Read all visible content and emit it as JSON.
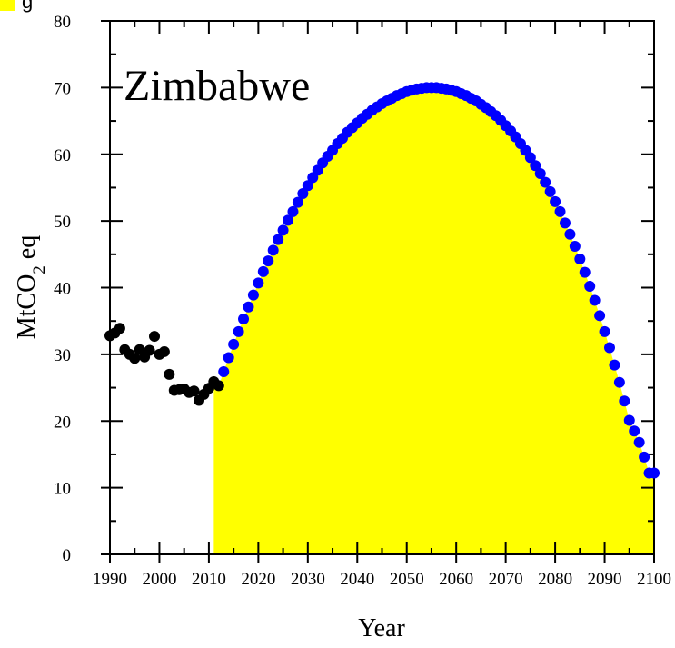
{
  "chart_data": {
    "type": "scatter",
    "title": "Zimbabwe",
    "xlabel": "Year",
    "ylabel": {
      "main": "MtCO",
      "sub": "2",
      "suffix": " eq"
    },
    "xlim": [
      1990,
      2100
    ],
    "ylim": [
      0,
      80
    ],
    "x_ticks": [
      1990,
      2000,
      2010,
      2020,
      2030,
      2040,
      2050,
      2060,
      2070,
      2080,
      2090,
      2100
    ],
    "y_ticks": [
      0,
      10,
      20,
      30,
      40,
      50,
      60,
      70,
      80
    ],
    "grid": false,
    "legend": {
      "placement": "top-left",
      "entries": [
        {
          "label": "g",
          "color": "#ffff00"
        }
      ]
    },
    "colors": {
      "historical": "#000000",
      "projection": "#0000ff",
      "area_fill": "#ffff00"
    },
    "series": [
      {
        "name": "historical",
        "x": [
          1990,
          1991,
          1992,
          1993,
          1994,
          1995,
          1996,
          1997,
          1998,
          1999,
          2000,
          2001,
          2002,
          2003,
          2004,
          2005,
          2006,
          2007,
          2008,
          2009,
          2010,
          2011,
          2012
        ],
        "y": [
          32.8,
          33.2,
          33.9,
          30.7,
          30.0,
          29.4,
          30.7,
          29.6,
          30.6,
          32.7,
          30.0,
          30.4,
          27.0,
          24.6,
          24.7,
          24.8,
          24.3,
          24.5,
          23.1,
          24.0,
          24.9,
          25.9,
          25.3
        ]
      },
      {
        "name": "projection",
        "x": [
          2013,
          2014,
          2015,
          2016,
          2017,
          2018,
          2019,
          2020,
          2021,
          2022,
          2023,
          2024,
          2025,
          2026,
          2027,
          2028,
          2029,
          2030,
          2031,
          2032,
          2033,
          2034,
          2035,
          2036,
          2037,
          2038,
          2039,
          2040,
          2041,
          2042,
          2043,
          2044,
          2045,
          2046,
          2047,
          2048,
          2049,
          2050,
          2051,
          2052,
          2053,
          2054,
          2055,
          2056,
          2057,
          2058,
          2059,
          2060,
          2061,
          2062,
          2063,
          2064,
          2065,
          2066,
          2067,
          2068,
          2069,
          2070,
          2071,
          2072,
          2073,
          2074,
          2075,
          2076,
          2077,
          2078,
          2079,
          2080,
          2081,
          2082,
          2083,
          2084,
          2085,
          2086,
          2087,
          2088,
          2089,
          2090,
          2091,
          2092,
          2093,
          2094,
          2095,
          2096,
          2097,
          2098,
          2099,
          2100
        ],
        "y": [
          27.4,
          29.5,
          31.5,
          33.4,
          35.3,
          37.1,
          38.9,
          40.7,
          42.4,
          44.0,
          45.6,
          47.2,
          48.6,
          50.1,
          51.4,
          52.8,
          54.1,
          55.3,
          56.5,
          57.6,
          58.7,
          59.7,
          60.6,
          61.6,
          62.4,
          63.3,
          64.0,
          64.7,
          65.4,
          66.0,
          66.6,
          67.1,
          67.6,
          68.0,
          68.4,
          68.8,
          69.1,
          69.4,
          69.6,
          69.8,
          69.9,
          70.0,
          70.0,
          70.0,
          69.9,
          69.8,
          69.6,
          69.4,
          69.1,
          68.8,
          68.4,
          68.0,
          67.5,
          67.0,
          66.4,
          65.8,
          65.1,
          64.3,
          63.5,
          62.6,
          61.6,
          60.6,
          59.5,
          58.3,
          57.1,
          55.8,
          54.4,
          52.9,
          51.4,
          49.7,
          48.0,
          46.2,
          44.3,
          42.3,
          40.2,
          38.1,
          35.8,
          33.4,
          31.0,
          28.4,
          25.8,
          23.0,
          20.1,
          18.5,
          16.8,
          14.6,
          12.2,
          12.2
        ]
      }
    ],
    "area": {
      "x": [
        2011,
        2012,
        2013,
        2014,
        2015,
        2016,
        2017,
        2018,
        2019,
        2020,
        2021,
        2022,
        2023,
        2024,
        2025,
        2026,
        2027,
        2028,
        2029,
        2030,
        2031,
        2032,
        2033,
        2034,
        2035,
        2036,
        2037,
        2038,
        2039,
        2040,
        2041,
        2042,
        2043,
        2044,
        2045,
        2046,
        2047,
        2048,
        2049,
        2050,
        2051,
        2052,
        2053,
        2054,
        2055,
        2056,
        2057,
        2058,
        2059,
        2060,
        2061,
        2062,
        2063,
        2064,
        2065,
        2066,
        2067,
        2068,
        2069,
        2070,
        2071,
        2072,
        2073,
        2074,
        2075,
        2076,
        2077,
        2078,
        2079,
        2080,
        2081,
        2082,
        2083,
        2084,
        2085,
        2086,
        2087,
        2088,
        2089,
        2090,
        2091,
        2092,
        2093,
        2094,
        2095,
        2096,
        2097,
        2098,
        2099,
        2100
      ],
      "y": [
        25.9,
        25.3,
        27.4,
        29.5,
        31.5,
        33.4,
        35.3,
        37.1,
        38.9,
        40.7,
        42.4,
        44.0,
        45.6,
        47.2,
        48.6,
        50.1,
        51.4,
        52.8,
        54.1,
        55.3,
        56.5,
        57.6,
        58.7,
        59.7,
        60.6,
        61.6,
        62.4,
        63.3,
        64.0,
        64.7,
        65.4,
        66.0,
        66.6,
        67.1,
        67.6,
        68.0,
        68.4,
        68.8,
        69.1,
        69.4,
        69.6,
        69.8,
        69.9,
        70.0,
        70.0,
        70.0,
        69.9,
        69.8,
        69.6,
        69.4,
        69.1,
        68.8,
        68.4,
        68.0,
        67.5,
        67.0,
        66.4,
        65.8,
        65.1,
        64.3,
        63.5,
        62.6,
        61.6,
        60.6,
        59.5,
        58.3,
        57.1,
        55.8,
        54.4,
        52.9,
        51.4,
        49.7,
        48.0,
        46.2,
        44.3,
        42.3,
        40.2,
        38.1,
        35.8,
        33.4,
        31.0,
        28.4,
        25.8,
        23.0,
        20.1,
        18.5,
        16.8,
        14.6,
        12.2,
        12.2
      ]
    }
  }
}
